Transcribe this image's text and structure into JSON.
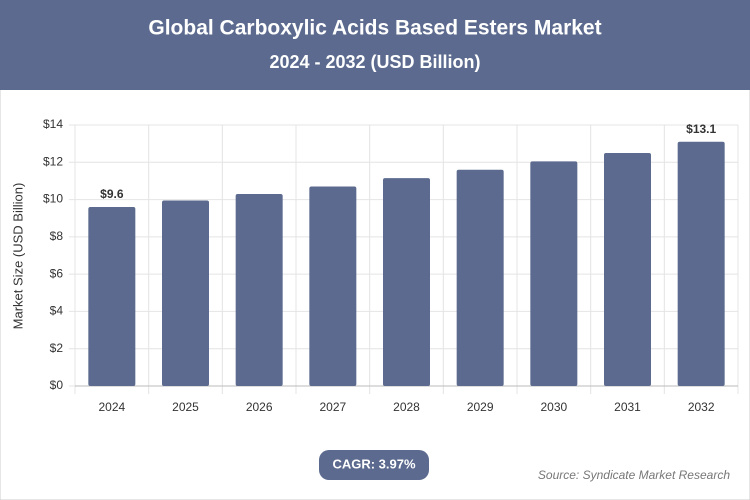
{
  "chart_data": {
    "type": "bar",
    "title": "Global Carboxylic Acids Based Esters Market",
    "subtitle": "2024 - 2032 (USD Billion)",
    "y_label": "Market Size (USD Billion)",
    "categories": [
      "2024",
      "2025",
      "2026",
      "2027",
      "2028",
      "2029",
      "2030",
      "2031",
      "2032"
    ],
    "values": [
      9.6,
      9.95,
      10.3,
      10.7,
      11.15,
      11.6,
      12.05,
      12.5,
      13.1
    ],
    "value_labels": [
      "$9.6",
      null,
      null,
      null,
      null,
      null,
      null,
      null,
      "$13.1"
    ],
    "color": "#5b6a8e",
    "ylim": [
      0,
      14
    ],
    "yticks": [
      {
        "value": 0,
        "label": "$0"
      },
      {
        "value": 2,
        "label": "$2"
      },
      {
        "value": 4,
        "label": "$4"
      },
      {
        "value": 6,
        "label": "$6"
      },
      {
        "value": 8,
        "label": "$8"
      },
      {
        "value": 10,
        "label": "$10"
      },
      {
        "value": 12,
        "label": "$12"
      },
      {
        "value": 14,
        "label": "$14"
      }
    ],
    "grid": true,
    "cagr": "CAGR: 3.97%",
    "source": "Source: Syndicate Market Research"
  }
}
